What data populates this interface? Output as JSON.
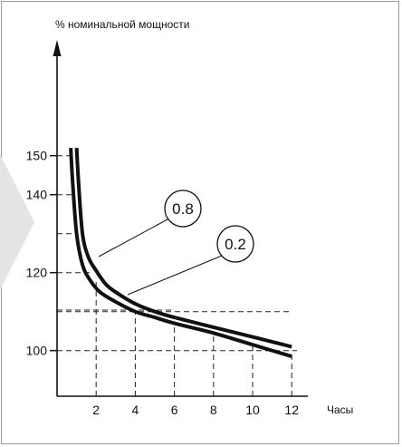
{
  "chart_data": {
    "type": "line",
    "title": "",
    "ylabel": "% номинальной мощности",
    "xlabel": "Часы",
    "xlim": [
      0,
      12.8
    ],
    "ylim": [
      88,
      160
    ],
    "x_ticks": [
      2,
      4,
      6,
      8,
      10,
      12
    ],
    "x_tick_labels": [
      "2",
      "4",
      "6",
      "8",
      "10",
      "12"
    ],
    "y_ticks": [
      100,
      120,
      140,
      150
    ],
    "y_tick_labels": [
      "100",
      "120",
      "140",
      "150"
    ],
    "guide_levels_y": [
      100,
      110,
      120,
      130,
      140,
      150
    ],
    "grid": false,
    "series": [
      {
        "name": "0.8",
        "x": [
          1.0,
          1.1,
          1.3,
          1.6,
          2.0,
          2.5,
          3.0,
          4.0,
          5.0,
          6.0,
          8.0,
          10.0,
          12.0
        ],
        "y": [
          152,
          143,
          130,
          124,
          120.5,
          117,
          115,
          112,
          110,
          108.5,
          106,
          103.5,
          101
        ]
      },
      {
        "name": "0.2",
        "x": [
          0.7,
          0.8,
          1.0,
          1.3,
          1.7,
          2.2,
          3.0,
          4.0,
          5.0,
          6.0,
          8.0,
          10.0,
          12.0
        ],
        "y": [
          152,
          143,
          130,
          122,
          118,
          115,
          112.5,
          110,
          108.5,
          107,
          104.5,
          101.5,
          98.5
        ]
      }
    ],
    "annotations": [
      {
        "text": "0.8",
        "points_to_series": "0.8"
      },
      {
        "text": "0.2",
        "points_to_series": "0.2"
      }
    ]
  }
}
